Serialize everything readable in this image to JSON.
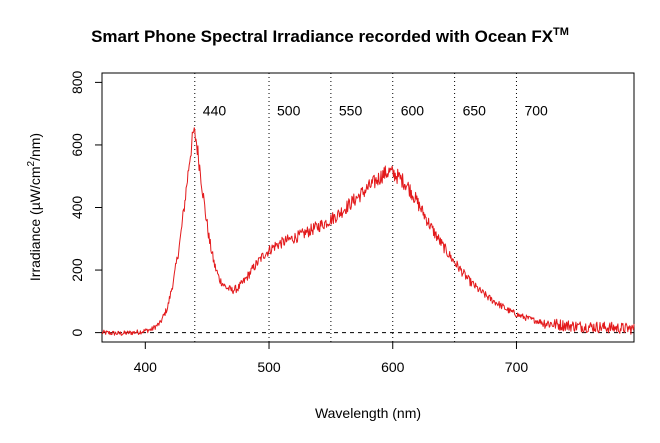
{
  "chart_data": {
    "type": "line",
    "title_main": "Smart Phone Spectral Irradiance recorded with Ocean FX",
    "title_sup": "TM",
    "xlabel": "Wavelength (nm)",
    "ylabel_pre": "Irradiance (µW/cm",
    "ylabel_sup": "2",
    "ylabel_post": "/nm)",
    "xlim": [
      365,
      795
    ],
    "ylim": [
      -30,
      830
    ],
    "x_ticks": [
      400,
      500,
      600,
      700
    ],
    "x_tick_labels": [
      "400",
      "500",
      "600",
      "700"
    ],
    "y_ticks": [
      0,
      200,
      400,
      600,
      800
    ],
    "y_tick_labels": [
      "0",
      "200",
      "400",
      "600",
      "800"
    ],
    "reference_lines": {
      "x_values": [
        440,
        500,
        550,
        600,
        650,
        700
      ],
      "labels": [
        "440",
        "500",
        "550",
        "600",
        "650",
        "700"
      ],
      "style": "dotted",
      "label_y": 710
    },
    "baseline": {
      "y": 0,
      "style": "dashed"
    },
    "grid": false,
    "legend": "none",
    "series": [
      {
        "color": "#e31a1c",
        "x": [
          365,
          380,
          395,
          405,
          412,
          418,
          423,
          428,
          432,
          436,
          439,
          441,
          444,
          448,
          452,
          456,
          460,
          465,
          470,
          475,
          480,
          488,
          496,
          505,
          515,
          525,
          535,
          545,
          555,
          565,
          575,
          585,
          592,
          597,
          602,
          607,
          612,
          618,
          625,
          632,
          640,
          648,
          655,
          662,
          670,
          678,
          686,
          694,
          702,
          712,
          722,
          735,
          750,
          765,
          780,
          795
        ],
        "y": [
          0,
          -3,
          2,
          10,
          30,
          80,
          170,
          290,
          420,
          560,
          640,
          620,
          530,
          400,
          290,
          215,
          170,
          145,
          135,
          142,
          165,
          210,
          250,
          278,
          295,
          310,
          330,
          350,
          375,
          410,
          445,
          480,
          505,
          515,
          505,
          490,
          470,
          430,
          380,
          330,
          280,
          235,
          200,
          165,
          135,
          110,
          90,
          70,
          55,
          42,
          32,
          25,
          20,
          18,
          15,
          12
        ]
      }
    ]
  }
}
